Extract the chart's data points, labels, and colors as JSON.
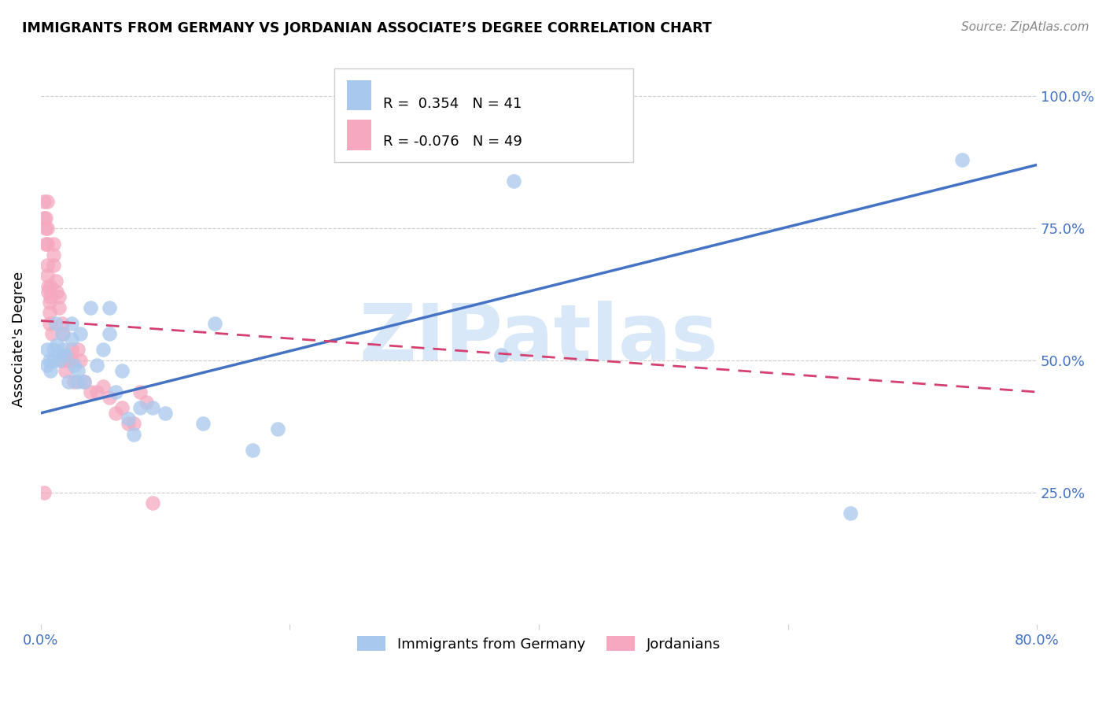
{
  "title": "IMMIGRANTS FROM GERMANY VS JORDANIAN ASSOCIATE’S DEGREE CORRELATION CHART",
  "source": "Source: ZipAtlas.com",
  "ylabel": "Associate's Degree",
  "legend_label1": "Immigrants from Germany",
  "legend_label2": "Jordanians",
  "R1": 0.354,
  "N1": 41,
  "R2": -0.076,
  "N2": 49,
  "xlim": [
    0.0,
    0.8
  ],
  "ylim": [
    0.0,
    1.08
  ],
  "xtick_vals": [
    0.0,
    0.2,
    0.4,
    0.6,
    0.8
  ],
  "xtick_labels": [
    "0.0%",
    "",
    "",
    "",
    "80.0%"
  ],
  "ytick_vals": [
    0.25,
    0.5,
    0.75,
    1.0
  ],
  "ytick_labels": [
    "25.0%",
    "50.0%",
    "75.0%",
    "100.0%"
  ],
  "color_blue": "#A8C8EE",
  "color_blue_line": "#4472C4",
  "color_pink": "#F5A8C0",
  "color_pink_line": "#D44070",
  "watermark_color": "#D8E8F8",
  "blue_points_x": [
    0.005,
    0.005,
    0.007,
    0.008,
    0.01,
    0.01,
    0.012,
    0.013,
    0.015,
    0.015,
    0.017,
    0.018,
    0.02,
    0.022,
    0.025,
    0.025,
    0.027,
    0.03,
    0.03,
    0.032,
    0.035,
    0.04,
    0.045,
    0.05,
    0.055,
    0.055,
    0.06,
    0.065,
    0.07,
    0.075,
    0.08,
    0.09,
    0.1,
    0.13,
    0.14,
    0.17,
    0.19,
    0.37,
    0.38,
    0.65,
    0.74
  ],
  "blue_points_y": [
    0.52,
    0.49,
    0.5,
    0.48,
    0.52,
    0.5,
    0.57,
    0.53,
    0.51,
    0.5,
    0.55,
    0.52,
    0.51,
    0.46,
    0.57,
    0.54,
    0.49,
    0.48,
    0.46,
    0.55,
    0.46,
    0.6,
    0.49,
    0.52,
    0.55,
    0.6,
    0.44,
    0.48,
    0.39,
    0.36,
    0.41,
    0.41,
    0.4,
    0.38,
    0.57,
    0.33,
    0.37,
    0.51,
    0.84,
    0.21,
    0.88
  ],
  "pink_points_x": [
    0.003,
    0.003,
    0.004,
    0.004,
    0.004,
    0.005,
    0.005,
    0.005,
    0.005,
    0.005,
    0.006,
    0.006,
    0.007,
    0.007,
    0.007,
    0.008,
    0.008,
    0.009,
    0.01,
    0.01,
    0.01,
    0.012,
    0.013,
    0.015,
    0.015,
    0.017,
    0.018,
    0.018,
    0.02,
    0.02,
    0.022,
    0.025,
    0.025,
    0.027,
    0.03,
    0.032,
    0.035,
    0.04,
    0.045,
    0.05,
    0.055,
    0.06,
    0.065,
    0.07,
    0.075,
    0.08,
    0.085,
    0.09,
    0.003
  ],
  "pink_points_y": [
    0.8,
    0.77,
    0.77,
    0.75,
    0.72,
    0.8,
    0.75,
    0.72,
    0.68,
    0.66,
    0.64,
    0.63,
    0.61,
    0.59,
    0.57,
    0.64,
    0.62,
    0.55,
    0.72,
    0.7,
    0.68,
    0.65,
    0.63,
    0.62,
    0.6,
    0.57,
    0.55,
    0.5,
    0.51,
    0.48,
    0.5,
    0.52,
    0.5,
    0.46,
    0.52,
    0.5,
    0.46,
    0.44,
    0.44,
    0.45,
    0.43,
    0.4,
    0.41,
    0.38,
    0.38,
    0.44,
    0.42,
    0.23,
    0.25
  ],
  "blue_line_x": [
    0.0,
    0.8
  ],
  "blue_line_y": [
    0.4,
    0.87
  ],
  "pink_line_x": [
    0.0,
    0.8
  ],
  "pink_line_y": [
    0.575,
    0.44
  ]
}
